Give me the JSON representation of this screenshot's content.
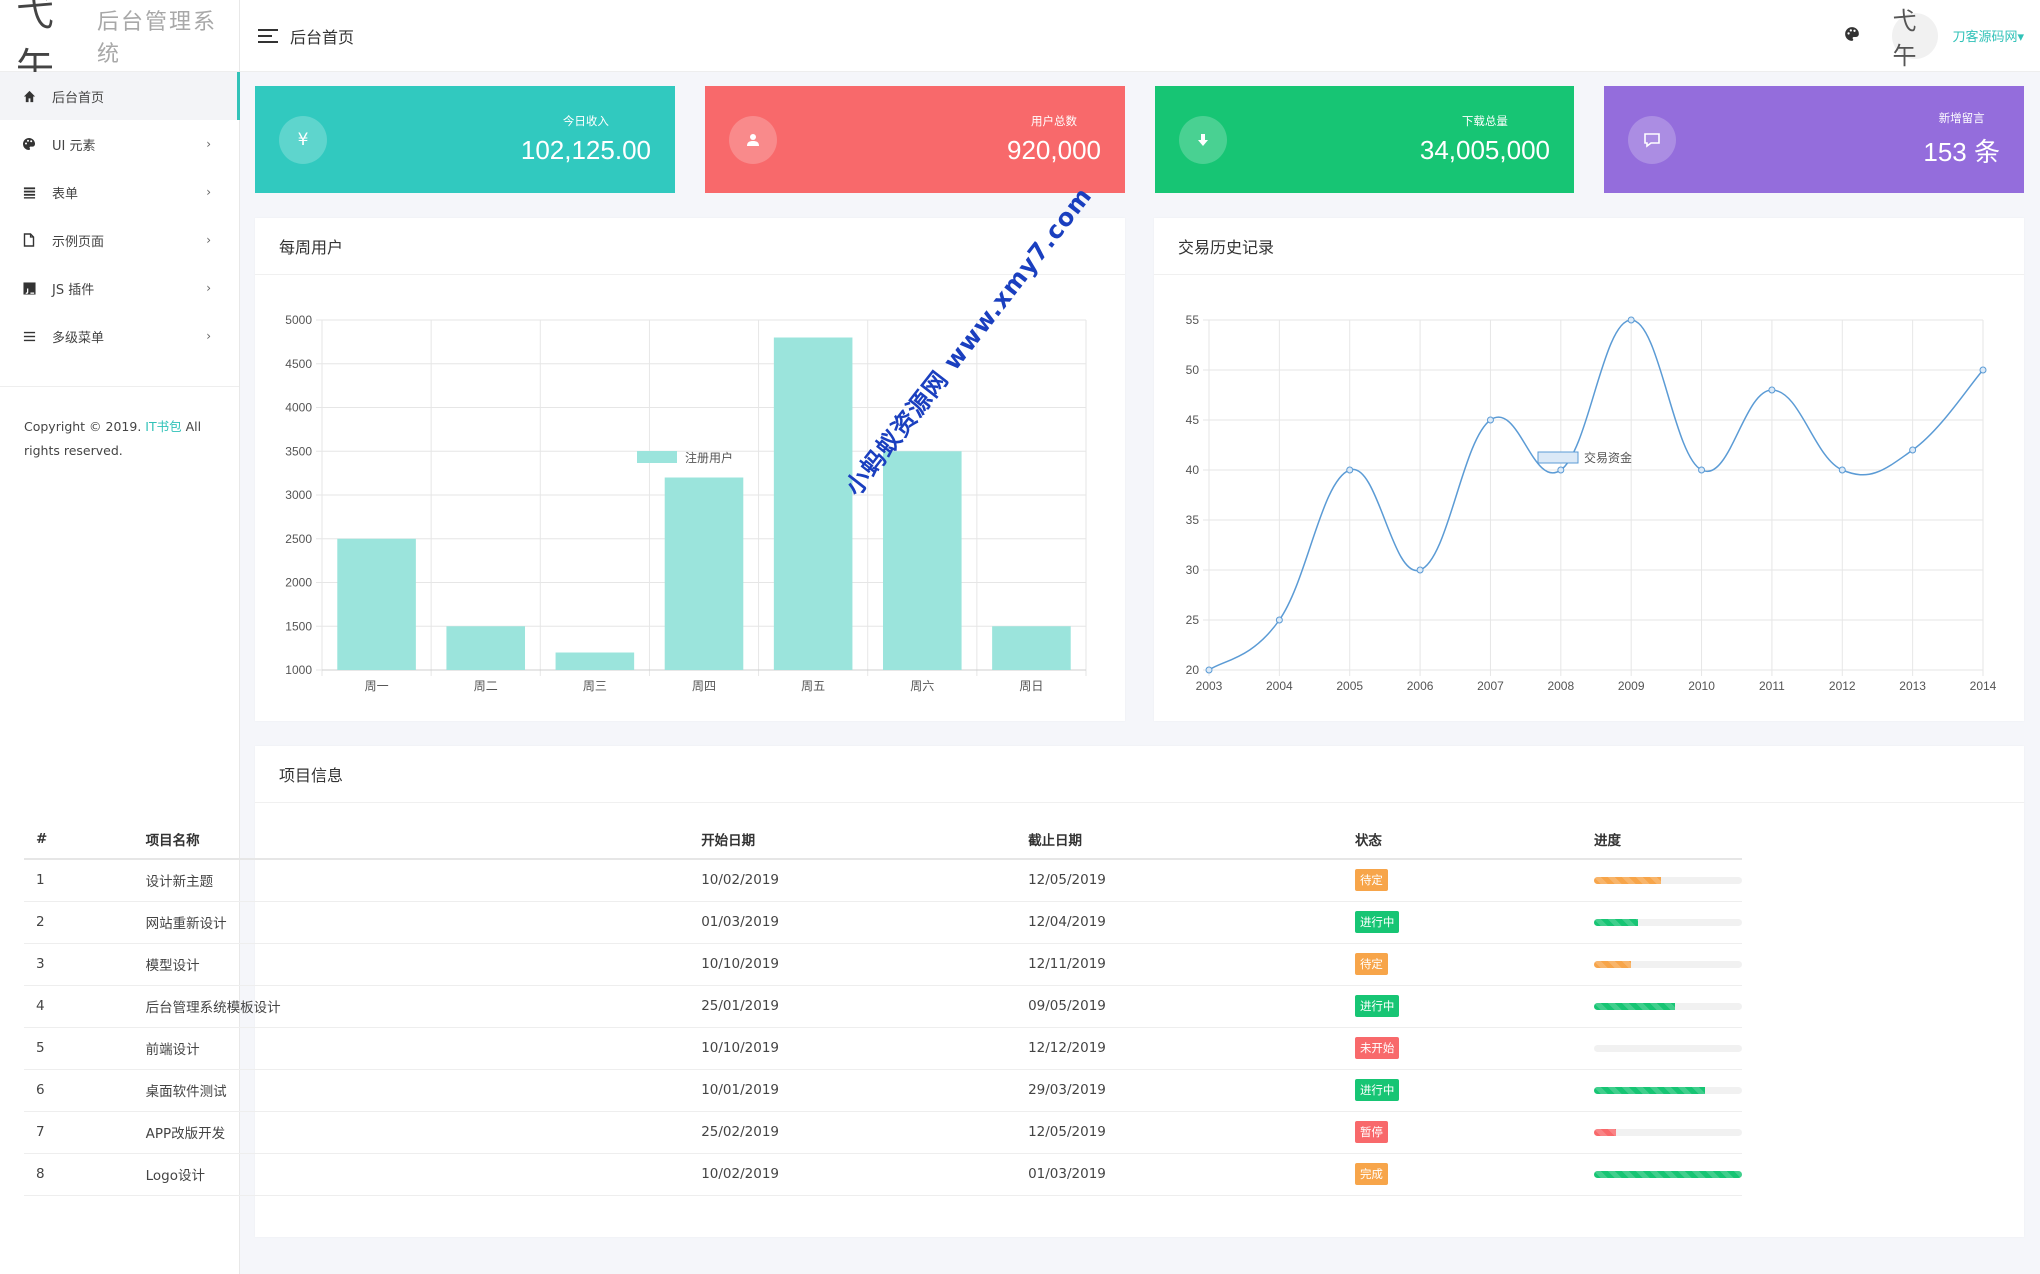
{
  "brand": {
    "logo_mark": "弋午",
    "title": "后台管理系统"
  },
  "sidebar": {
    "items": [
      {
        "label": "后台首页",
        "icon": "home-icon",
        "active": true
      },
      {
        "label": "UI 元素",
        "icon": "palette-icon",
        "chevron": "›"
      },
      {
        "label": "表单",
        "icon": "list-icon",
        "chevron": "›"
      },
      {
        "label": "示例页面",
        "icon": "file-icon",
        "chevron": "›"
      },
      {
        "label": "JS 插件",
        "icon": "js-icon",
        "chevron": "›"
      },
      {
        "label": "多级菜单",
        "icon": "menu-icon",
        "chevron": "›"
      }
    ],
    "copyright_pre": "Copyright © 2019. ",
    "copyright_link": "IT书包",
    "copyright_post": " All rights reserved."
  },
  "header": {
    "title": "后台首页",
    "avatar_text": "弋午",
    "username": "刀客源码网",
    "caret": "▾"
  },
  "stats": [
    {
      "label": "今日收入",
      "value": "102,125.00",
      "icon": "yen-icon",
      "glyph": "¥",
      "color": "#31c9bf"
    },
    {
      "label": "用户总数",
      "value": "920,000",
      "icon": "user-icon",
      "color": "#f8696b"
    },
    {
      "label": "下载总量",
      "value": "34,005,000",
      "icon": "download-icon",
      "color": "#17c574"
    },
    {
      "label": "新增留言",
      "value": "153 条",
      "icon": "comment-icon",
      "color": "#946ddc"
    }
  ],
  "weekly_panel": {
    "title": "每周用户"
  },
  "history_panel": {
    "title": "交易历史记录"
  },
  "chart_data": [
    {
      "type": "bar",
      "categories": [
        "周一",
        "周二",
        "周三",
        "周四",
        "周五",
        "周六",
        "周日"
      ],
      "series": [
        {
          "name": "注册用户",
          "values": [
            2500,
            1500,
            1200,
            3200,
            4800,
            3500,
            1500
          ]
        }
      ],
      "ylim": [
        1000,
        5000
      ],
      "yticks": [
        1000,
        1500,
        2000,
        2500,
        3000,
        3500,
        4000,
        4500,
        5000
      ],
      "color": "#9be4dc",
      "grid": true,
      "legend": "top-center"
    },
    {
      "type": "line",
      "x": [
        2003,
        2004,
        2005,
        2006,
        2007,
        2008,
        2009,
        2010,
        2011,
        2012,
        2013,
        2014
      ],
      "series": [
        {
          "name": "交易资金",
          "values": [
            20,
            25,
            40,
            30,
            45,
            40,
            55,
            40,
            48,
            40,
            42,
            50
          ]
        }
      ],
      "ylim": [
        20,
        55
      ],
      "yticks": [
        20,
        25,
        30,
        35,
        40,
        45,
        50,
        55
      ],
      "color": "#5b9bd5",
      "grid": true,
      "legend": "top-center"
    }
  ],
  "projects": {
    "title": "项目信息",
    "columns": [
      "#",
      "项目名称",
      "开始日期",
      "截止日期",
      "状态",
      "进度"
    ],
    "rows": [
      {
        "id": "1",
        "name": "设计新主题",
        "start": "10/02/2019",
        "end": "12/05/2019",
        "status": "待定",
        "status_color": "#f7a54a",
        "progress": 0.45,
        "progress_color": "#f7a54a"
      },
      {
        "id": "2",
        "name": "网站重新设计",
        "start": "01/03/2019",
        "end": "12/04/2019",
        "status": "进行中",
        "status_color": "#17c574",
        "progress": 0.3,
        "progress_color": "#17c574"
      },
      {
        "id": "3",
        "name": "模型设计",
        "start": "10/10/2019",
        "end": "12/11/2019",
        "status": "待定",
        "status_color": "#f7a54a",
        "progress": 0.25,
        "progress_color": "#f7a54a"
      },
      {
        "id": "4",
        "name": "后台管理系统模板设计",
        "start": "25/01/2019",
        "end": "09/05/2019",
        "status": "进行中",
        "status_color": "#17c574",
        "progress": 0.55,
        "progress_color": "#17c574"
      },
      {
        "id": "5",
        "name": "前端设计",
        "start": "10/10/2019",
        "end": "12/12/2019",
        "status": "未开始",
        "status_color": "#f8696b",
        "progress": 0,
        "progress_color": "#f8696b"
      },
      {
        "id": "6",
        "name": "桌面软件测试",
        "start": "10/01/2019",
        "end": "29/03/2019",
        "status": "进行中",
        "status_color": "#17c574",
        "progress": 0.75,
        "progress_color": "#17c574"
      },
      {
        "id": "7",
        "name": "APP改版开发",
        "start": "25/02/2019",
        "end": "12/05/2019",
        "status": "暂停",
        "status_color": "#f8696b",
        "progress": 0.15,
        "progress_color": "#f8696b"
      },
      {
        "id": "8",
        "name": "Logo设计",
        "start": "10/02/2019",
        "end": "01/03/2019",
        "status": "完成",
        "status_color": "#f7a54a",
        "progress": 1.0,
        "progress_color": "#17c574"
      }
    ]
  },
  "watermark": "小蚂蚁资源网 www.xmy7.com"
}
